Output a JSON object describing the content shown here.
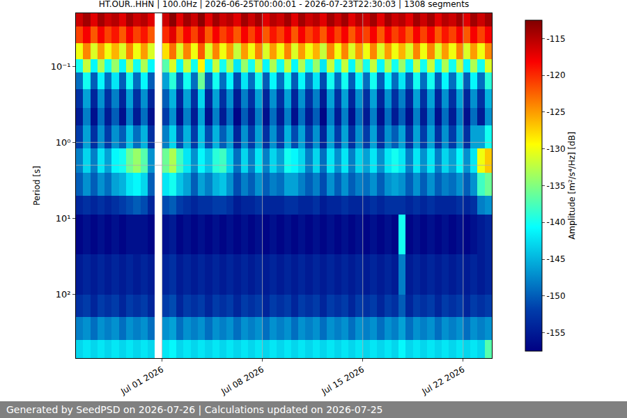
{
  "chart_data": {
    "type": "heatmap",
    "title": "HT.OUR..HHN | 100.0Hz | 2026-06-25T00:00:01 - 2026-07-23T22:30:03 | 1308 segments",
    "y_label": "Period [s]",
    "log": "y",
    "grid": true,
    "color": "jet",
    "xlim": [
      "2026-06-25 00:00",
      "2026-07-24 00:00"
    ],
    "xticks": [
      {
        "value": "2026-07-01",
        "label": "Jul 01 2026"
      },
      {
        "value": "2026-07-08",
        "label": "Jul 08 2026"
      },
      {
        "value": "2026-07-15",
        "label": "Jul 15 2026"
      },
      {
        "value": "2026-07-22",
        "label": "Jul 22 2026"
      }
    ],
    "ylim": [
      690,
      0.02
    ],
    "yticks": [
      {
        "value": 0.1,
        "label": "10⁻¹"
      },
      {
        "value": 1,
        "label": "10⁰"
      },
      {
        "value": 10,
        "label": "10¹"
      },
      {
        "value": 100,
        "label": "10²"
      }
    ],
    "x_edges": [
      "2026-06-25 00:00",
      "2026-06-25 12:00",
      "2026-06-26 00:00",
      "2026-06-26 12:00",
      "2026-06-27 00:00",
      "2026-06-27 12:00",
      "2026-06-28 00:00",
      "2026-06-28 12:00",
      "2026-06-29 00:00",
      "2026-06-29 12:00",
      "2026-06-30 00:00",
      "2026-06-30 12:00",
      "2026-07-01 00:00",
      "2026-07-01 12:00",
      "2026-07-02 00:00",
      "2026-07-02 12:00",
      "2026-07-03 00:00",
      "2026-07-03 12:00",
      "2026-07-04 00:00",
      "2026-07-04 12:00",
      "2026-07-05 00:00",
      "2026-07-05 12:00",
      "2026-07-06 00:00",
      "2026-07-06 12:00",
      "2026-07-07 00:00",
      "2026-07-07 12:00",
      "2026-07-08 00:00",
      "2026-07-08 12:00",
      "2026-07-09 00:00",
      "2026-07-09 12:00",
      "2026-07-10 00:00",
      "2026-07-10 12:00",
      "2026-07-11 00:00",
      "2026-07-11 12:00",
      "2026-07-12 00:00",
      "2026-07-12 12:00",
      "2026-07-13 00:00",
      "2026-07-13 12:00",
      "2026-07-14 00:00",
      "2026-07-14 12:00",
      "2026-07-15 00:00",
      "2026-07-15 12:00",
      "2026-07-16 00:00",
      "2026-07-16 12:00",
      "2026-07-17 00:00",
      "2026-07-17 12:00",
      "2026-07-18 00:00",
      "2026-07-18 12:00",
      "2026-07-19 00:00",
      "2026-07-19 12:00",
      "2026-07-20 00:00",
      "2026-07-20 12:00",
      "2026-07-21 00:00",
      "2026-07-21 12:00",
      "2026-07-22 00:00",
      "2026-07-22 12:00",
      "2026-07-23 00:00",
      "2026-07-23 12:00",
      "2026-07-24 00:00"
    ],
    "y_edges": [
      0.02,
      0.03,
      0.05,
      0.08,
      0.12,
      0.2,
      0.35,
      0.6,
      1.2,
      2.5,
      5,
      9,
      30,
      100,
      200,
      400,
      690
    ],
    "z": [
      [
        -116,
        -114,
        -117,
        -114,
        -116,
        -115,
        -117,
        -114,
        -116,
        -115,
        -117,
        null,
        -116,
        -113,
        -117,
        -114,
        -116,
        -113,
        -117,
        -114,
        -116,
        -115,
        -117,
        -114,
        -116,
        -114,
        -117,
        -115,
        -116,
        -114,
        -117,
        -114,
        -116,
        -115,
        -117,
        -114,
        -116,
        -114,
        -117,
        -115,
        -116,
        -114,
        -117,
        -114,
        -116,
        -115,
        -117,
        -114,
        -116,
        -114,
        -117,
        -115,
        -116,
        -114,
        -117,
        -114,
        -116,
        -114
      ],
      [
        -121,
        -118,
        -122,
        -118,
        -121,
        -119,
        -122,
        -118,
        -121,
        -119,
        -122,
        null,
        -120,
        -117,
        -122,
        -118,
        -121,
        -117,
        -122,
        -118,
        -121,
        -119,
        -122,
        -118,
        -121,
        -118,
        -122,
        -119,
        -121,
        -118,
        -122,
        -118,
        -121,
        -119,
        -122,
        -118,
        -121,
        -118,
        -122,
        -119,
        -121,
        -118,
        -122,
        -118,
        -121,
        -119,
        -122,
        -118,
        -121,
        -118,
        -122,
        -119,
        -121,
        -118,
        -122,
        -118,
        -121,
        -118
      ],
      [
        -130,
        -124,
        -131,
        -125,
        -130,
        -126,
        -131,
        -124,
        -130,
        -125,
        -131,
        null,
        -128,
        -123,
        -131,
        -124,
        -130,
        -122,
        -131,
        -124,
        -130,
        -125,
        -132,
        -125,
        -130,
        -124,
        -131,
        -125,
        -130,
        -124,
        -131,
        -125,
        -130,
        -126,
        -132,
        -124,
        -130,
        -124,
        -131,
        -125,
        -130,
        -124,
        -131,
        -125,
        -130,
        -126,
        -131,
        -124,
        -130,
        -124,
        -131,
        -125,
        -130,
        -124,
        -131,
        -125,
        -130,
        -124
      ],
      [
        -140,
        -132,
        -141,
        -133,
        -140,
        -134,
        -141,
        -132,
        -140,
        -133,
        -141,
        null,
        -137,
        -131,
        -141,
        -132,
        -140,
        -129,
        -141,
        -132,
        -140,
        -133,
        -142,
        -134,
        -140,
        -132,
        -141,
        -133,
        -140,
        -132,
        -141,
        -133,
        -140,
        -134,
        -142,
        -132,
        -140,
        -132,
        -141,
        -133,
        -140,
        -132,
        -141,
        -133,
        -140,
        -134,
        -141,
        -132,
        -140,
        -132,
        -141,
        -133,
        -140,
        -132,
        -141,
        -133,
        -140,
        -131
      ],
      [
        -149,
        -140,
        -150,
        -141,
        -149,
        -142,
        -150,
        -140,
        -149,
        -141,
        -150,
        null,
        -146,
        -139,
        -150,
        -140,
        -149,
        -136,
        -150,
        -140,
        -149,
        -141,
        -151,
        -142,
        -149,
        -140,
        -150,
        -141,
        -149,
        -140,
        -150,
        -141,
        -149,
        -142,
        -151,
        -140,
        -149,
        -140,
        -150,
        -141,
        -149,
        -140,
        -150,
        -141,
        -149,
        -142,
        -150,
        -140,
        -149,
        -140,
        -150,
        -141,
        -149,
        -140,
        -150,
        -141,
        -149,
        -139
      ],
      [
        -153,
        -146,
        -154,
        -147,
        -153,
        -148,
        -154,
        -146,
        -153,
        -147,
        -154,
        null,
        -150,
        -145,
        -154,
        -146,
        -153,
        -143,
        -154,
        -146,
        -153,
        -147,
        -155,
        -148,
        -153,
        -146,
        -154,
        -147,
        -153,
        -146,
        -154,
        -147,
        -153,
        -148,
        -155,
        -146,
        -153,
        -146,
        -154,
        -147,
        -153,
        -146,
        -154,
        -147,
        -153,
        -148,
        -154,
        -146,
        -153,
        -146,
        -154,
        -147,
        -153,
        -146,
        -154,
        -147,
        -153,
        -145
      ],
      [
        -155,
        -148,
        -156,
        -149,
        -155,
        -150,
        -156,
        -148,
        -155,
        -149,
        -156,
        null,
        -152,
        -147,
        -156,
        -148,
        -155,
        -146,
        -156,
        -148,
        -155,
        -149,
        -157,
        -150,
        -155,
        -148,
        -156,
        -149,
        -155,
        -148,
        -156,
        -149,
        -155,
        -150,
        -157,
        -148,
        -155,
        -148,
        -156,
        -149,
        -155,
        -148,
        -156,
        -149,
        -155,
        -150,
        -156,
        -148,
        -155,
        -148,
        -156,
        -149,
        -155,
        -148,
        -156,
        -149,
        -155,
        -147
      ],
      [
        -152,
        -146,
        -153,
        -147,
        -152,
        -147,
        -150,
        -144,
        -149,
        -145,
        -153,
        null,
        -148,
        -143,
        -151,
        -145,
        -152,
        -144,
        -151,
        -145,
        -150,
        -146,
        -154,
        -147,
        -152,
        -146,
        -153,
        -147,
        -152,
        -145,
        -151,
        -146,
        -152,
        -147,
        -154,
        -146,
        -152,
        -146,
        -153,
        -147,
        -152,
        -146,
        -153,
        -147,
        -150,
        -146,
        -153,
        -146,
        -152,
        -146,
        -153,
        -147,
        -152,
        -146,
        -153,
        -146,
        -146,
        -140
      ],
      [
        -148,
        -143,
        -148,
        -142,
        -146,
        -141,
        -140,
        -136,
        -134,
        -137,
        -147,
        null,
        -136,
        -133,
        -138,
        -142,
        -147,
        -141,
        -144,
        -139,
        -138,
        -143,
        -149,
        -143,
        -148,
        -142,
        -148,
        -143,
        -146,
        -140,
        -141,
        -143,
        -148,
        -143,
        -149,
        -142,
        -147,
        -142,
        -148,
        -143,
        -146,
        -142,
        -147,
        -142,
        -140,
        -142,
        -148,
        -142,
        -147,
        -142,
        -148,
        -143,
        -146,
        -141,
        -147,
        -142,
        -130,
        -127
      ],
      [
        -150,
        -147,
        -150,
        -147,
        -149,
        -146,
        -145,
        -142,
        -141,
        -143,
        -150,
        null,
        -142,
        -140,
        -144,
        -146,
        -150,
        -146,
        -148,
        -145,
        -144,
        -147,
        -151,
        -148,
        -150,
        -147,
        -150,
        -148,
        -149,
        -146,
        -146,
        -148,
        -150,
        -148,
        -151,
        -147,
        -150,
        -147,
        -150,
        -148,
        -149,
        -147,
        -150,
        -147,
        -146,
        -147,
        -150,
        -147,
        -150,
        -147,
        -150,
        -148,
        -149,
        -147,
        -150,
        -147,
        -138,
        -136
      ],
      [
        -154,
        -153,
        -154,
        -153,
        -154,
        -153,
        -152,
        -151,
        -150,
        -151,
        -154,
        null,
        -151,
        -150,
        -152,
        -153,
        -154,
        -153,
        -153,
        -152,
        -152,
        -153,
        -155,
        -154,
        -154,
        -153,
        -154,
        -154,
        -154,
        -153,
        -153,
        -154,
        -154,
        -153,
        -155,
        -154,
        -154,
        -153,
        -154,
        -154,
        -154,
        -153,
        -154,
        -153,
        -153,
        -153,
        -154,
        -153,
        -154,
        -153,
        -154,
        -154,
        -154,
        -153,
        -154,
        -153,
        -148,
        -147
      ],
      [
        -157,
        -156,
        -157,
        -156,
        -157,
        -156,
        -157,
        -156,
        -156,
        -156,
        -157,
        null,
        -156,
        -155,
        -157,
        -156,
        -157,
        -156,
        -157,
        -156,
        -157,
        -156,
        -157,
        -156,
        -157,
        -156,
        -157,
        -156,
        -157,
        -156,
        -157,
        -156,
        -157,
        -156,
        -157,
        -156,
        -157,
        -156,
        -157,
        -156,
        -157,
        -156,
        -157,
        -156,
        -157,
        -140,
        -157,
        -156,
        -157,
        -156,
        -157,
        -156,
        -157,
        -156,
        -157,
        -156,
        -155,
        -154
      ],
      [
        -155,
        -154,
        -155,
        -154,
        -155,
        -154,
        -155,
        -154,
        -155,
        -154,
        -155,
        null,
        -154,
        -153,
        -155,
        -154,
        -155,
        -154,
        -155,
        -154,
        -155,
        -154,
        -155,
        -154,
        -155,
        -154,
        -155,
        -154,
        -155,
        -154,
        -155,
        -154,
        -155,
        -154,
        -155,
        -154,
        -155,
        -154,
        -155,
        -154,
        -155,
        -154,
        -155,
        -154,
        -155,
        -148,
        -155,
        -154,
        -155,
        -154,
        -155,
        -154,
        -155,
        -154,
        -155,
        -154,
        -155,
        -154
      ],
      [
        -153,
        -152,
        -154,
        -152,
        -153,
        -152,
        -154,
        -152,
        -153,
        -152,
        -154,
        null,
        -152,
        -151,
        -154,
        -152,
        -153,
        -152,
        -154,
        -152,
        -153,
        -152,
        -154,
        -152,
        -153,
        -152,
        -154,
        -152,
        -153,
        -152,
        -154,
        -152,
        -153,
        -152,
        -154,
        -152,
        -153,
        -152,
        -154,
        -152,
        -153,
        -152,
        -154,
        -152,
        -153,
        -150,
        -154,
        -152,
        -153,
        -152,
        -154,
        -152,
        -153,
        -152,
        -154,
        -152,
        -153,
        -152
      ],
      [
        -148,
        -147,
        -149,
        -147,
        -148,
        -147,
        -149,
        -147,
        -148,
        -147,
        -149,
        null,
        -147,
        -146,
        -149,
        -147,
        -148,
        -147,
        -149,
        -147,
        -148,
        -147,
        -149,
        -147,
        -148,
        -147,
        -149,
        -147,
        -148,
        -147,
        -149,
        -147,
        -148,
        -147,
        -149,
        -147,
        -148,
        -147,
        -149,
        -147,
        -148,
        -147,
        -149,
        -147,
        -148,
        -146,
        -149,
        -147,
        -148,
        -147,
        -149,
        -147,
        -148,
        -147,
        -149,
        -147,
        -148,
        -147
      ],
      [
        -143,
        -142,
        -143,
        -142,
        -143,
        -142,
        -143,
        -142,
        -143,
        -142,
        -143,
        null,
        -142,
        -141,
        -143,
        -142,
        -143,
        -142,
        -143,
        -142,
        -143,
        -142,
        -143,
        -142,
        -143,
        -142,
        -143,
        -142,
        -143,
        -142,
        -143,
        -142,
        -143,
        -142,
        -143,
        -142,
        -143,
        -142,
        -143,
        -142,
        -143,
        -142,
        -143,
        -142,
        -143,
        -141,
        -143,
        -142,
        -143,
        -142,
        -143,
        -142,
        -143,
        -142,
        -143,
        -142,
        -143,
        -137
      ]
    ],
    "colorbar": {
      "label": "Amplitude [m²/s⁴/Hz] [dB]",
      "range": [
        -157.5,
        -112.5
      ],
      "ticks": [
        -155,
        -150,
        -145,
        -140,
        -135,
        -130,
        -125,
        -120,
        -115
      ]
    }
  },
  "footer": "Generated by SeedPSD on 2026-07-26 | Calculations updated on 2026-07-25"
}
